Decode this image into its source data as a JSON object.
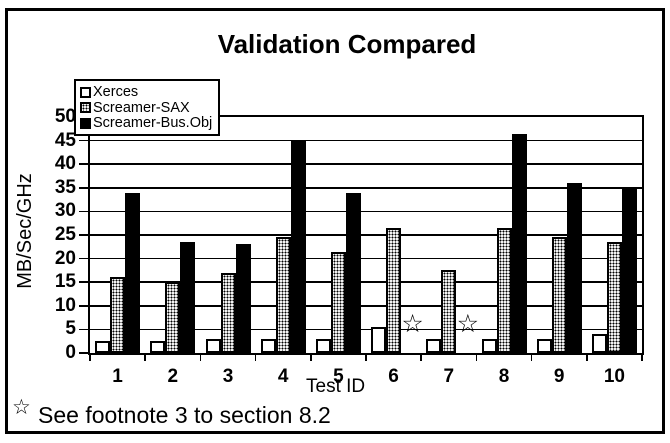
{
  "window": {
    "background_color": "#ffffff",
    "border_color": "#000000"
  },
  "chart_data": {
    "type": "bar",
    "title": "Validation Compared",
    "xlabel": "Test ID",
    "ylabel": "MB/Sec/GHz",
    "ylim": [
      0,
      50
    ],
    "ytick_step": 5,
    "grid": true,
    "legend_position": "top-left",
    "categories": [
      "1",
      "2",
      "3",
      "4",
      "5",
      "6",
      "7",
      "8",
      "9",
      "10"
    ],
    "series": [
      {
        "name": "Xerces",
        "fill": "white",
        "values": [
          2.5,
          2.5,
          3,
          3,
          3,
          5.5,
          3,
          3,
          3,
          4
        ]
      },
      {
        "name": "Screamer-SAX",
        "fill": "dots",
        "values": [
          16,
          15,
          17,
          24.5,
          21.5,
          26.5,
          17.5,
          26.5,
          24.5,
          23.5
        ]
      },
      {
        "name": "Screamer-Bus.Obj",
        "fill": "black",
        "values": [
          34,
          23.5,
          23,
          45,
          34,
          null,
          null,
          46.5,
          36,
          35
        ]
      }
    ],
    "star_marker_tests": [
      "6",
      "7"
    ],
    "star_symbol": "☆"
  },
  "footnote": {
    "symbol": "☆",
    "text": "See footnote 3 to section 8.2"
  }
}
